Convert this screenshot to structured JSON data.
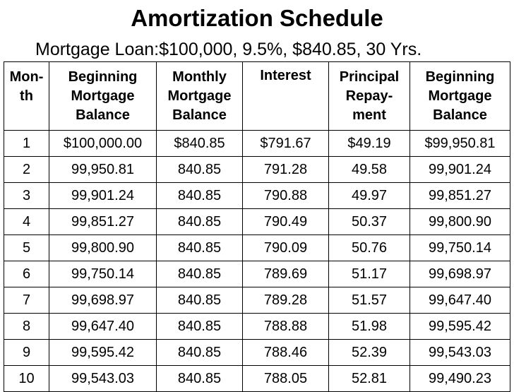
{
  "document": {
    "title": "Amortization Schedule",
    "subtitle": "Mortgage Loan:$100,000, 9.5%, $840.85, 30 Yrs."
  },
  "table": {
    "columns": [
      {
        "lines": [
          "Mon-",
          "th",
          ""
        ]
      },
      {
        "lines": [
          "Beginning",
          "Mortgage",
          "Balance"
        ]
      },
      {
        "lines": [
          "Monthly",
          "Mortgage",
          "Balance"
        ]
      },
      {
        "lines": [
          "Interest",
          "",
          ""
        ]
      },
      {
        "lines": [
          "Principal",
          "Repay-",
          "ment"
        ]
      },
      {
        "lines": [
          "Beginning",
          "Mortgage",
          "Balance"
        ]
      }
    ],
    "rows": [
      [
        "1",
        "$100,000.00",
        "$840.85",
        "$791.67",
        "$49.19",
        "$99,950.81"
      ],
      [
        "2",
        "99,950.81",
        "840.85",
        "791.28",
        "49.58",
        "99,901.24"
      ],
      [
        "3",
        "99,901.24",
        "840.85",
        "790.88",
        "49.97",
        "99,851.27"
      ],
      [
        "4",
        "99,851.27",
        "840.85",
        "790.49",
        "50.37",
        "99,800.90"
      ],
      [
        "5",
        "99,800.90",
        "840.85",
        "790.09",
        "50.76",
        "99,750.14"
      ],
      [
        "6",
        "99,750.14",
        "840.85",
        "789.69",
        "51.17",
        "99,698.97"
      ],
      [
        "7",
        "99,698.97",
        "840.85",
        "789.28",
        "51.57",
        "99,647.40"
      ],
      [
        "8",
        "99,647.40",
        "840.85",
        "788.88",
        "51.98",
        "99,595.42"
      ],
      [
        "9",
        "99,595.42",
        "840.85",
        "788.46",
        "52.39",
        "99,543.03"
      ],
      [
        "10",
        "99,543.03",
        "840.85",
        "788.05",
        "52.81",
        "99,490.23"
      ]
    ]
  }
}
